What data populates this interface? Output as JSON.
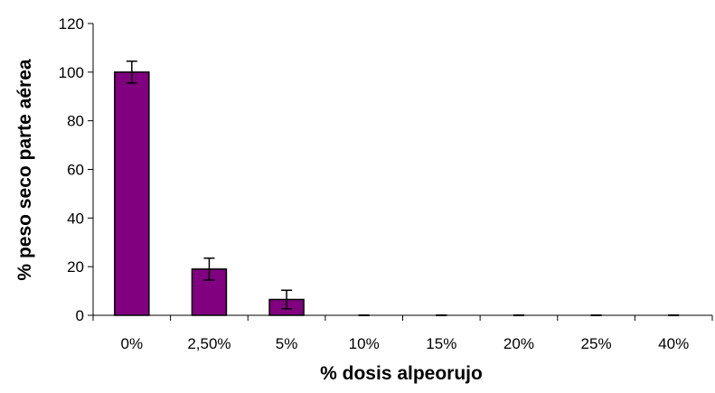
{
  "chart_data": {
    "type": "bar",
    "categories": [
      "0%",
      "2,50%",
      "5%",
      "10%",
      "15%",
      "20%",
      "25%",
      "40%"
    ],
    "values": [
      100,
      19,
      6.5,
      0,
      0,
      0,
      0,
      0
    ],
    "errors": [
      4.5,
      4.5,
      3.8,
      0,
      0,
      0,
      0,
      0
    ],
    "xlabel": "% dosis alpeorujo",
    "ylabel": "% peso seco parte aérea",
    "ylim": [
      0,
      120
    ],
    "yticks": [
      "0",
      "20",
      "40",
      "60",
      "80",
      "100",
      "120"
    ],
    "grid": false,
    "legend": "none",
    "bar_color": "#800080",
    "bar_edge_color": "#000000"
  }
}
